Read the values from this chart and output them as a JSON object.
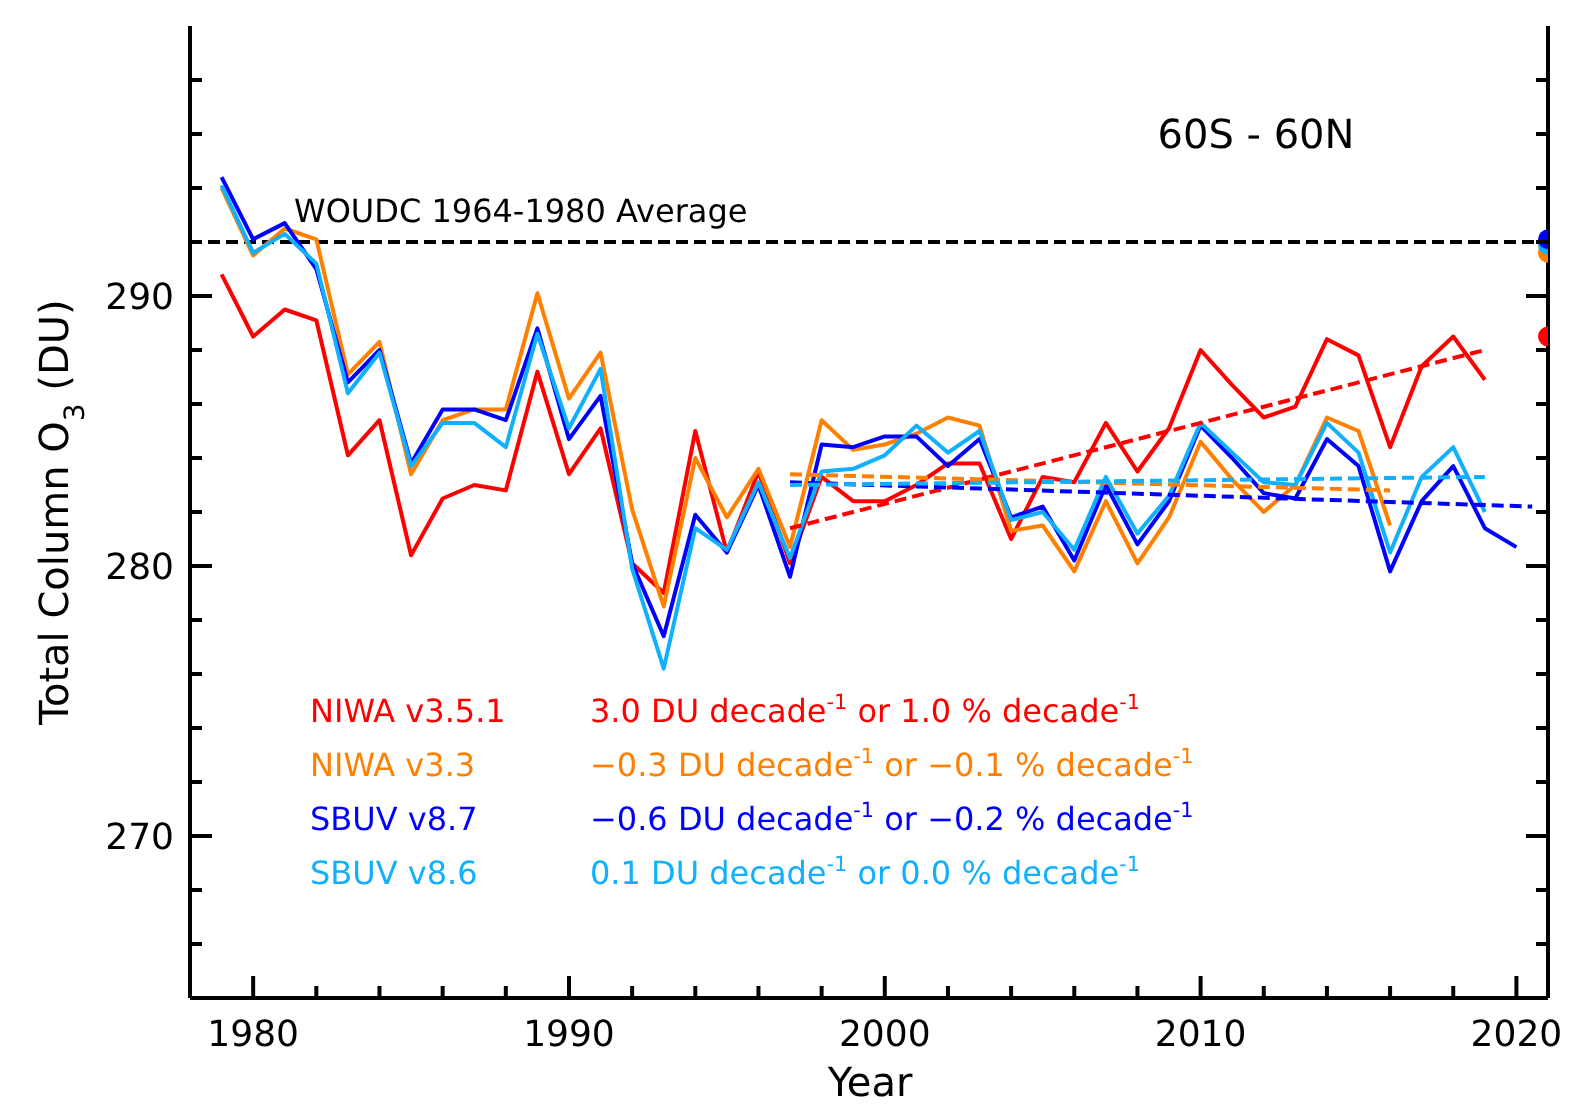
{
  "chart_data": {
    "type": "line",
    "xlabel": "Year",
    "ylabel": "Total Column O$_{3}$ (DU)",
    "xlim": [
      1978,
      2021
    ],
    "ylim": [
      264,
      300
    ],
    "xticks": [
      {
        "value": 1978,
        "label": null
      },
      1980,
      {
        "value": 1982,
        "label": null
      },
      {
        "value": 1984,
        "label": null
      },
      {
        "value": 1986,
        "label": null
      },
      {
        "value": 1988,
        "label": null
      },
      1990,
      {
        "value": 1992,
        "label": null
      },
      {
        "value": 1994,
        "label": null
      },
      {
        "value": 1996,
        "label": null
      },
      {
        "value": 1998,
        "label": null
      },
      2000,
      {
        "value": 2002,
        "label": null
      },
      {
        "value": 2004,
        "label": null
      },
      {
        "value": 2006,
        "label": null
      },
      {
        "value": 2008,
        "label": null
      },
      2010,
      {
        "value": 2012,
        "label": null
      },
      {
        "value": 2014,
        "label": null
      },
      {
        "value": 2016,
        "label": null
      },
      {
        "value": 2018,
        "label": null
      },
      2020
    ],
    "yticks": [
      {
        "value": 266,
        "label": null
      },
      {
        "value": 268,
        "label": null
      },
      270,
      {
        "value": 272,
        "label": null
      },
      {
        "value": 274,
        "label": null
      },
      {
        "value": 276,
        "label": null
      },
      {
        "value": 278,
        "label": null
      },
      280,
      {
        "value": 282,
        "label": null
      },
      {
        "value": 284,
        "label": null
      },
      {
        "value": 286,
        "label": null
      },
      {
        "value": 288,
        "label": null
      },
      290,
      {
        "value": 292,
        "label": null
      },
      {
        "value": 294,
        "label": null
      },
      {
        "value": 296,
        "label": null
      },
      {
        "value": 298,
        "label": null
      }
    ],
    "legend": "bottom left",
    "ref_lines": [
      {
        "axis": "y",
        "value": 292,
        "label": "WOUDC 1964-1980 Average",
        "color": "#000000",
        "line_style": "dashed"
      }
    ],
    "annotations": [
      "60S - 60N",
      "3.0 DU decade$^{-1}$ or 1.0 % decade$^{-1}$",
      "−0.3 DU decade$^{-1}$ or −0.1 % decade$^{-1}$",
      "−0.6 DU decade$^{-1}$ or −0.2 % decade$^{-1}$",
      "0.1 DU decade$^{-1}$ or 0.0 % decade$^{-1}$"
    ],
    "series": [
      {
        "name": "NIWA v3.5.1",
        "color": "#ff0000",
        "x": [
          1979,
          1980,
          1981,
          1982,
          1983,
          1984,
          1985,
          1986,
          1987,
          1988,
          1989,
          1990,
          1991,
          1992,
          1993,
          1994,
          1995,
          1996,
          1997,
          1998,
          1999,
          2000,
          2001,
          2002,
          2003,
          2004,
          2005,
          2006,
          2007,
          2008,
          2009,
          2010,
          2011,
          2012,
          2013,
          2014,
          2015,
          2016,
          2017,
          2018,
          2019
        ],
        "values": [
          290.8,
          288.5,
          289.5,
          289.1,
          284.1,
          285.4,
          280.4,
          282.5,
          283.0,
          282.8,
          287.2,
          283.4,
          285.1,
          280.1,
          279.0,
          285.0,
          280.5,
          283.5,
          280.1,
          283.3,
          282.4,
          282.4,
          283.0,
          283.8,
          283.8,
          281.0,
          283.3,
          283.1,
          285.3,
          283.5,
          285.1,
          288.0,
          286.7,
          285.5,
          285.9,
          288.4,
          287.8,
          284.4,
          287.4,
          288.5,
          286.9
        ]
      },
      {
        "name": "NIWA v3.3",
        "color": "#ff8000",
        "x": [
          1979,
          1980,
          1981,
          1982,
          1983,
          1984,
          1985,
          1986,
          1987,
          1988,
          1989,
          1990,
          1991,
          1992,
          1993,
          1994,
          1995,
          1996,
          1997,
          1998,
          1999,
          2000,
          2001,
          2002,
          2003,
          2004,
          2005,
          2006,
          2007,
          2008,
          2009,
          2010,
          2011,
          2012,
          2013,
          2014,
          2015,
          2016
        ],
        "values": [
          294.0,
          291.5,
          292.5,
          292.1,
          287.1,
          288.3,
          283.4,
          285.4,
          285.8,
          285.8,
          290.1,
          286.2,
          287.9,
          282.1,
          278.5,
          284.0,
          281.8,
          283.6,
          280.7,
          285.4,
          284.3,
          284.5,
          284.9,
          285.5,
          285.2,
          281.3,
          281.5,
          279.8,
          282.4,
          280.1,
          281.8,
          284.6,
          283.2,
          282.0,
          283.0,
          285.5,
          285.0,
          281.5
        ]
      },
      {
        "name": "SBUV v8.7",
        "color": "#0000ff",
        "x": [
          1979,
          1980,
          1981,
          1982,
          1983,
          1984,
          1985,
          1986,
          1987,
          1988,
          1989,
          1990,
          1991,
          1992,
          1993,
          1994,
          1995,
          1996,
          1997,
          1998,
          1999,
          2000,
          2001,
          2002,
          2003,
          2004,
          2005,
          2006,
          2007,
          2008,
          2009,
          2010,
          2011,
          2012,
          2013,
          2014,
          2015,
          2016,
          2017,
          2018,
          2019,
          2020
        ],
        "values": [
          294.4,
          292.1,
          292.7,
          291.0,
          286.8,
          288.0,
          283.8,
          285.8,
          285.8,
          285.4,
          288.8,
          284.7,
          286.3,
          280.1,
          277.4,
          281.9,
          280.5,
          283.0,
          279.6,
          284.5,
          284.4,
          284.8,
          284.8,
          283.7,
          284.7,
          281.8,
          282.2,
          280.2,
          283.0,
          280.8,
          282.4,
          285.2,
          284.0,
          282.7,
          282.5,
          284.7,
          283.7,
          279.8,
          282.4,
          283.7,
          281.4,
          280.7
        ]
      },
      {
        "name": "SBUV v8.6",
        "color": "#10b0ff",
        "x": [
          1979,
          1980,
          1981,
          1982,
          1983,
          1984,
          1985,
          1986,
          1987,
          1988,
          1989,
          1990,
          1991,
          1992,
          1993,
          1994,
          1995,
          1996,
          1997,
          1998,
          1999,
          2000,
          2001,
          2002,
          2003,
          2004,
          2005,
          2006,
          2007,
          2008,
          2009,
          2010,
          2011,
          2012,
          2013,
          2014,
          2015,
          2016,
          2017,
          2018,
          2019
        ],
        "values": [
          294.1,
          291.6,
          292.3,
          291.2,
          286.4,
          287.9,
          283.7,
          285.3,
          285.3,
          284.4,
          288.6,
          285.1,
          287.3,
          279.9,
          276.2,
          281.4,
          280.6,
          283.1,
          280.3,
          283.5,
          283.6,
          284.1,
          285.2,
          284.2,
          285.0,
          281.7,
          282.0,
          280.6,
          283.3,
          281.2,
          282.6,
          285.3,
          284.2,
          283.1,
          283.0,
          285.3,
          284.2,
          280.5,
          283.3,
          284.4,
          282.0
        ]
      },
      {
        "type": "line",
        "line_style": "dashed",
        "color": "#ff0000",
        "x": [
          1997,
          2019
        ],
        "values": [
          281.4,
          288.0
        ]
      },
      {
        "type": "line",
        "line_style": "dashed",
        "color": "#ff8000",
        "x": [
          1997,
          2016
        ],
        "values": [
          283.4,
          282.8
        ]
      },
      {
        "type": "line",
        "line_style": "dashed",
        "color": "#0000ff",
        "x": [
          1997,
          2020.5
        ],
        "values": [
          283.1,
          282.2
        ]
      },
      {
        "type": "line",
        "line_style": "dashed",
        "color": "#10b0ff",
        "x": [
          1997,
          2019
        ],
        "values": [
          283.0,
          283.3
        ]
      },
      {
        "type": "scatter",
        "color": "#ff0000",
        "x": [
          2021
        ],
        "values": [
          288.5
        ]
      },
      {
        "type": "scatter",
        "color": "#ff8000",
        "x": [
          2021
        ],
        "values": [
          291.6
        ]
      },
      {
        "type": "scatter",
        "color": "#10b0ff",
        "x": [
          2021
        ],
        "values": [
          291.9
        ]
      },
      {
        "type": "scatter",
        "color": "#0000ff",
        "x": [
          2021
        ],
        "values": [
          292.1
        ]
      }
    ]
  }
}
